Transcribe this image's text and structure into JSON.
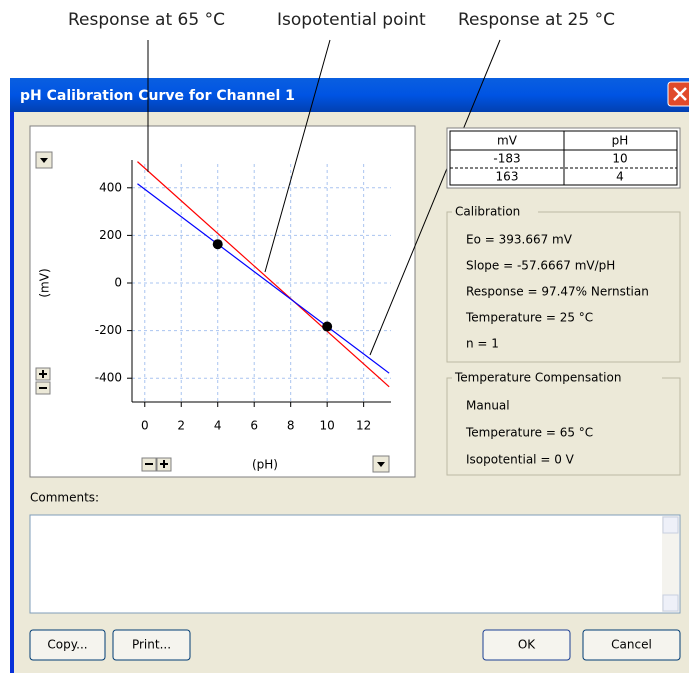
{
  "annotations": [
    "Response at 65 °C",
    "Isopotential point",
    "Response at 25 °C"
  ],
  "window": {
    "title": "pH Calibration Curve for Channel 1"
  },
  "chart_data": {
    "type": "line",
    "xlabel": "(pH)",
    "ylabel": "(mV)",
    "xlim": [
      -0.7,
      13.5
    ],
    "ylim": [
      -500,
      500
    ],
    "xticks": [
      0,
      2,
      4,
      6,
      8,
      10,
      12
    ],
    "yticks": [
      -400,
      -200,
      0,
      200,
      400
    ],
    "grid": true,
    "grid_color": "#a9c4f0",
    "series": [
      {
        "color": "#ff0000",
        "x": [
          -0.4,
          13.4
        ],
        "values": [
          510,
          -436
        ]
      },
      {
        "color": "#0000ff",
        "x": [
          -0.4,
          13.4
        ],
        "values": [
          417,
          -379
        ]
      }
    ],
    "points": {
      "color": "#000000",
      "x": [
        4,
        10
      ],
      "values": [
        163,
        -183
      ]
    }
  },
  "table": {
    "headers": [
      "mV",
      "pH"
    ],
    "rows": [
      [
        "-183",
        "10"
      ],
      [
        "163",
        "4"
      ]
    ]
  },
  "calibration": {
    "title": "Calibration",
    "lines": [
      "Eo = 393.667 mV",
      "Slope = -57.6667 mV/pH",
      "Response = 97.47% Nernstian",
      "Temperature = 25 °C",
      "n = 1"
    ]
  },
  "compensation": {
    "title": "Temperature Compensation",
    "lines": [
      "Manual",
      "Temperature = 65 °C",
      "Isopotential = 0 V"
    ]
  },
  "comments_label": "Comments:",
  "buttons": [
    "Copy...",
    "Print...",
    "OK",
    "Cancel"
  ]
}
